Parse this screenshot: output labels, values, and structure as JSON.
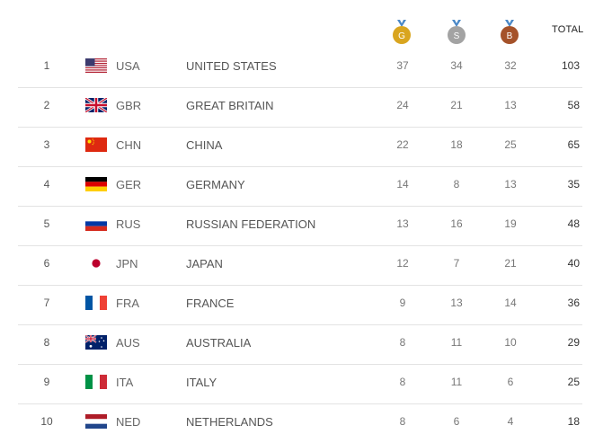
{
  "header": {
    "gold_letter": "G",
    "silver_letter": "S",
    "bronze_letter": "B",
    "total_label": "TOTAL"
  },
  "colors": {
    "gold": "#d9a51f",
    "silver": "#a3a3a3",
    "bronze": "#a5522a",
    "ribbon": "#4a88c7",
    "divider": "#e3e3e3"
  },
  "rows": [
    {
      "rank": "1",
      "flag": "usa-flag",
      "code": "USA",
      "country": "UNITED STATES",
      "gold": "37",
      "silver": "34",
      "bronze": "32",
      "total": "103"
    },
    {
      "rank": "2",
      "flag": "gbr-flag",
      "code": "GBR",
      "country": "GREAT BRITAIN",
      "gold": "24",
      "silver": "21",
      "bronze": "13",
      "total": "58"
    },
    {
      "rank": "3",
      "flag": "chn-flag",
      "code": "CHN",
      "country": "CHINA",
      "gold": "22",
      "silver": "18",
      "bronze": "25",
      "total": "65"
    },
    {
      "rank": "4",
      "flag": "ger-flag",
      "code": "GER",
      "country": "GERMANY",
      "gold": "14",
      "silver": "8",
      "bronze": "13",
      "total": "35"
    },
    {
      "rank": "5",
      "flag": "rus-flag",
      "code": "RUS",
      "country": "RUSSIAN FEDERATION",
      "gold": "13",
      "silver": "16",
      "bronze": "19",
      "total": "48"
    },
    {
      "rank": "6",
      "flag": "jpn-flag",
      "code": "JPN",
      "country": "JAPAN",
      "gold": "12",
      "silver": "7",
      "bronze": "21",
      "total": "40"
    },
    {
      "rank": "7",
      "flag": "fra-flag",
      "code": "FRA",
      "country": "FRANCE",
      "gold": "9",
      "silver": "13",
      "bronze": "14",
      "total": "36"
    },
    {
      "rank": "8",
      "flag": "aus-flag",
      "code": "AUS",
      "country": "AUSTRALIA",
      "gold": "8",
      "silver": "11",
      "bronze": "10",
      "total": "29"
    },
    {
      "rank": "9",
      "flag": "ita-flag",
      "code": "ITA",
      "country": "ITALY",
      "gold": "8",
      "silver": "11",
      "bronze": "6",
      "total": "25"
    },
    {
      "rank": "10",
      "flag": "ned-flag",
      "code": "NED",
      "country": "NETHERLANDS",
      "gold": "8",
      "silver": "6",
      "bronze": "4",
      "total": "18"
    }
  ]
}
